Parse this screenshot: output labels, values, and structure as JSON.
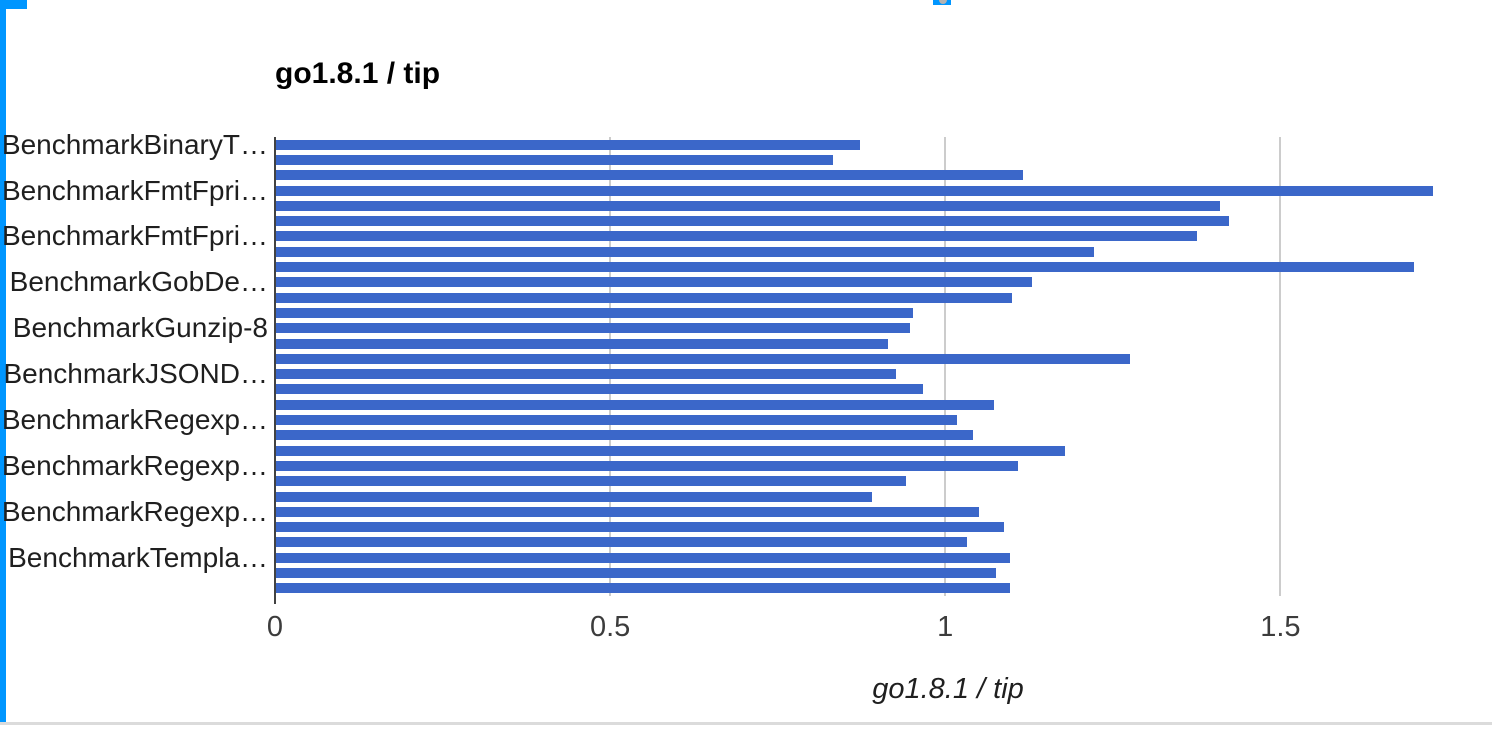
{
  "page": {
    "background": "#ffffff"
  },
  "chart_data": {
    "type": "bar",
    "orientation": "horizontal",
    "title": "go1.8.1 / tip",
    "xlabel": "go1.8.1 / tip",
    "ylabel": "",
    "xlim": [
      0,
      1.768
    ],
    "grid": true,
    "legend_position": "none",
    "bar_color": "#3b67c9",
    "gridline_color": "#cccccc",
    "baseline_color": "#424242",
    "xticks": [
      {
        "value": 0,
        "label": "0"
      },
      {
        "value": 0.5,
        "label": "0.5"
      },
      {
        "value": 1,
        "label": "1"
      },
      {
        "value": 1.5,
        "label": "1.5"
      }
    ],
    "categories": [
      "BenchmarkBinaryT…",
      "",
      "",
      "BenchmarkFmtFpri…",
      "",
      "",
      "BenchmarkFmtFpri…",
      "",
      "",
      "BenchmarkGobDe…",
      "",
      "",
      "BenchmarkGunzip-8",
      "",
      "",
      "BenchmarkJSOND…",
      "",
      "",
      "BenchmarkRegexp…",
      "",
      "",
      "BenchmarkRegexp…",
      "",
      "",
      "BenchmarkRegexp…",
      "",
      "",
      "BenchmarkTempla…",
      "",
      ""
    ],
    "values": [
      0.873,
      0.832,
      1.116,
      1.728,
      1.41,
      1.424,
      1.375,
      1.222,
      1.7,
      1.13,
      1.099,
      0.952,
      0.947,
      0.914,
      1.276,
      0.927,
      0.967,
      1.072,
      1.018,
      1.042,
      1.178,
      1.109,
      0.941,
      0.891,
      1.051,
      1.088,
      1.033,
      1.097,
      1.075,
      1.097
    ]
  },
  "artifacts": {
    "selection_color": "#0096ff",
    "handle_dot_color": "#b3b3b3",
    "bottom_line_color": "#dbdbdb"
  }
}
